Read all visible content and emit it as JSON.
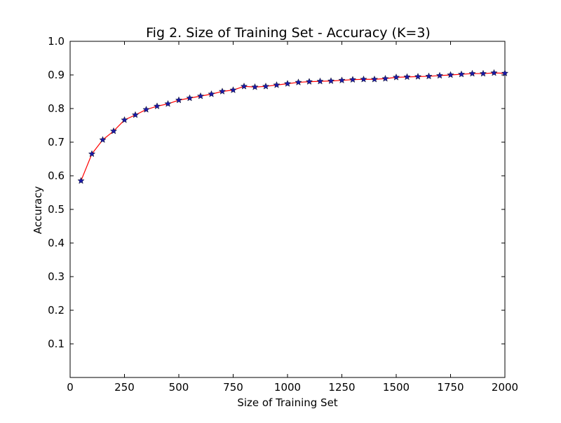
{
  "chart_data": {
    "type": "line",
    "title": "Fig 2. Size of Training Set - Accuracy (K=3)",
    "xlabel": "Size of Training Set",
    "ylabel": "Accuracy",
    "xlim": [
      0,
      2000
    ],
    "ylim": [
      0.0,
      1.0
    ],
    "x_ticks": [
      "0",
      "250",
      "500",
      "750",
      "1000",
      "1250",
      "1500",
      "1750",
      "2000"
    ],
    "y_ticks": [
      "0.1",
      "0.2",
      "0.3",
      "0.4",
      "0.5",
      "0.6",
      "0.7",
      "0.8",
      "0.9",
      "1.0"
    ],
    "grid": false,
    "legend": "none",
    "series": [
      {
        "line_color": "#ff0000",
        "marker": "star",
        "marker_color": "#1a1aa6",
        "x": [
          50,
          100,
          150,
          200,
          250,
          300,
          350,
          400,
          450,
          500,
          550,
          600,
          650,
          700,
          750,
          800,
          850,
          900,
          950,
          1000,
          1050,
          1100,
          1150,
          1200,
          1250,
          1300,
          1350,
          1400,
          1450,
          1500,
          1550,
          1600,
          1650,
          1700,
          1750,
          1800,
          1850,
          1900,
          1950,
          2000
        ],
        "y": [
          0.585,
          0.665,
          0.707,
          0.733,
          0.766,
          0.781,
          0.797,
          0.807,
          0.814,
          0.825,
          0.831,
          0.837,
          0.843,
          0.851,
          0.855,
          0.866,
          0.864,
          0.866,
          0.87,
          0.874,
          0.878,
          0.88,
          0.881,
          0.882,
          0.884,
          0.886,
          0.887,
          0.887,
          0.889,
          0.893,
          0.894,
          0.895,
          0.896,
          0.898,
          0.9,
          0.902,
          0.904,
          0.904,
          0.906,
          0.905
        ]
      }
    ]
  }
}
